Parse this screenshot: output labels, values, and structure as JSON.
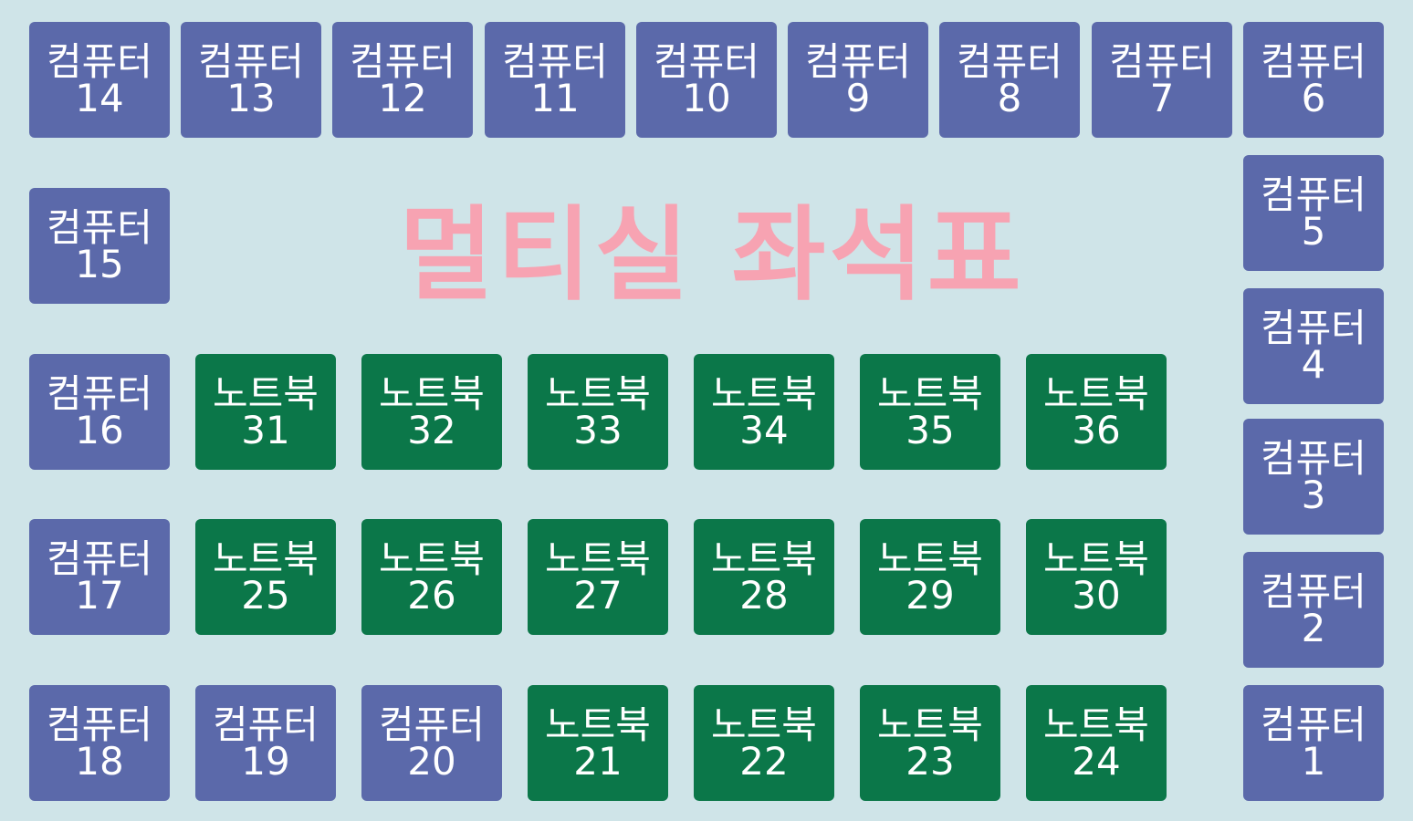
{
  "title": "멀티실 좌석표",
  "colors": {
    "background": "#cfe4e8",
    "computer": "#5b69aa",
    "notebook": "#0b7749",
    "title": "#f7a3b2"
  },
  "seats": {
    "c14": {
      "kind": "컴퓨터",
      "num": "14"
    },
    "c13": {
      "kind": "컴퓨터",
      "num": "13"
    },
    "c12": {
      "kind": "컴퓨터",
      "num": "12"
    },
    "c11": {
      "kind": "컴퓨터",
      "num": "11"
    },
    "c10": {
      "kind": "컴퓨터",
      "num": "10"
    },
    "c9": {
      "kind": "컴퓨터",
      "num": "9"
    },
    "c8": {
      "kind": "컴퓨터",
      "num": "8"
    },
    "c7": {
      "kind": "컴퓨터",
      "num": "7"
    },
    "c6": {
      "kind": "컴퓨터",
      "num": "6"
    },
    "c5": {
      "kind": "컴퓨터",
      "num": "5"
    },
    "c4": {
      "kind": "컴퓨터",
      "num": "4"
    },
    "c3": {
      "kind": "컴퓨터",
      "num": "3"
    },
    "c2": {
      "kind": "컴퓨터",
      "num": "2"
    },
    "c1": {
      "kind": "컴퓨터",
      "num": "1"
    },
    "c15": {
      "kind": "컴퓨터",
      "num": "15"
    },
    "c16": {
      "kind": "컴퓨터",
      "num": "16"
    },
    "c17": {
      "kind": "컴퓨터",
      "num": "17"
    },
    "c18": {
      "kind": "컴퓨터",
      "num": "18"
    },
    "c19": {
      "kind": "컴퓨터",
      "num": "19"
    },
    "c20": {
      "kind": "컴퓨터",
      "num": "20"
    },
    "n31": {
      "kind": "노트북",
      "num": "31"
    },
    "n32": {
      "kind": "노트북",
      "num": "32"
    },
    "n33": {
      "kind": "노트북",
      "num": "33"
    },
    "n34": {
      "kind": "노트북",
      "num": "34"
    },
    "n35": {
      "kind": "노트북",
      "num": "35"
    },
    "n36": {
      "kind": "노트북",
      "num": "36"
    },
    "n25": {
      "kind": "노트북",
      "num": "25"
    },
    "n26": {
      "kind": "노트북",
      "num": "26"
    },
    "n27": {
      "kind": "노트북",
      "num": "27"
    },
    "n28": {
      "kind": "노트북",
      "num": "28"
    },
    "n29": {
      "kind": "노트북",
      "num": "29"
    },
    "n30": {
      "kind": "노트북",
      "num": "30"
    },
    "n21": {
      "kind": "노트북",
      "num": "21"
    },
    "n22": {
      "kind": "노트북",
      "num": "22"
    },
    "n23": {
      "kind": "노트북",
      "num": "23"
    },
    "n24": {
      "kind": "노트북",
      "num": "24"
    }
  }
}
